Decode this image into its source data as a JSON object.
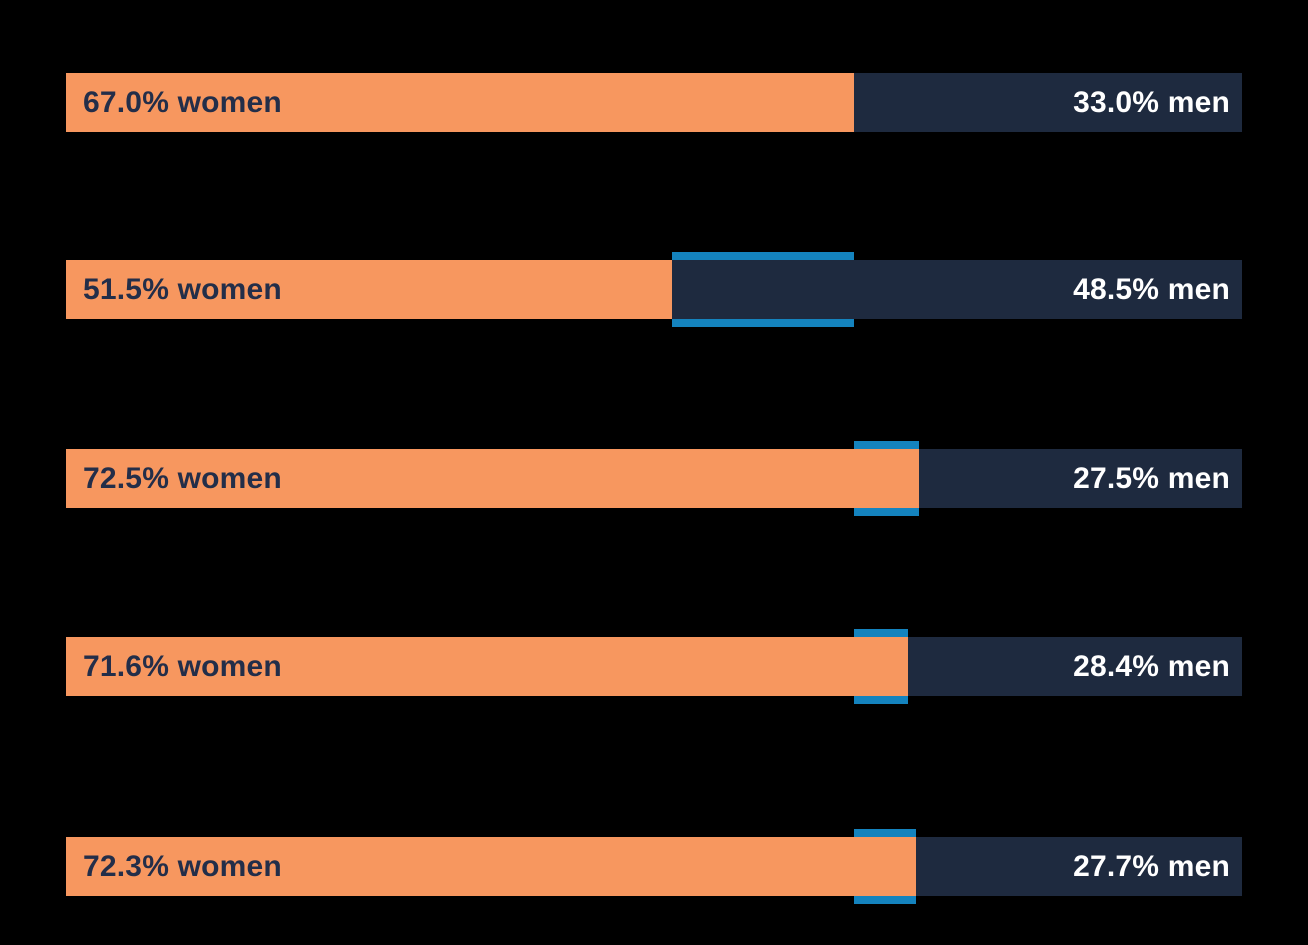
{
  "chart_data": {
    "type": "bar",
    "subtype": "horizontal-stacked-100pct",
    "title": "",
    "xlabel": "",
    "ylabel": "",
    "axis_visible": false,
    "grid": false,
    "legend": "none (labels written inside bar segments)",
    "background": "#000000",
    "series": [
      {
        "name": "women",
        "color": "#F7975F",
        "values": [
          67.0,
          51.5,
          72.5,
          71.6,
          72.3
        ]
      },
      {
        "name": "men",
        "color": "#1E2A3F",
        "values": [
          33.0,
          48.5,
          27.5,
          28.4,
          27.7
        ]
      }
    ],
    "reference_marker": {
      "color": "#1483BE",
      "reference_pct": 67.0,
      "description": "blue band behind each bar spanning from 67.0% to that bar's women share"
    },
    "rows": [
      {
        "women_pct": 67.0,
        "men_pct": 33.0,
        "women_label": "67.0% women",
        "men_label": "33.0% men",
        "highlight": null
      },
      {
        "women_pct": 51.5,
        "men_pct": 48.5,
        "women_label": "51.5% women",
        "men_label": "48.5% men",
        "highlight": {
          "from": 51.5,
          "to": 67.0
        }
      },
      {
        "women_pct": 72.5,
        "men_pct": 27.5,
        "women_label": "72.5% women",
        "men_label": "27.5% men",
        "highlight": {
          "from": 67.0,
          "to": 72.5
        }
      },
      {
        "women_pct": 71.6,
        "men_pct": 28.4,
        "women_label": "71.6% women",
        "men_label": "28.4% men",
        "highlight": {
          "from": 67.0,
          "to": 71.6
        }
      },
      {
        "women_pct": 72.3,
        "men_pct": 27.7,
        "women_label": "72.3% women",
        "men_label": "27.7% men",
        "highlight": {
          "from": 67.0,
          "to": 72.3
        }
      }
    ],
    "colors": {
      "women": "#F7975F",
      "men": "#1E2A3F",
      "highlight": "#1483BE",
      "women_label_text": "#232E49",
      "men_label_text": "#FFFFFF",
      "background": "#000000"
    }
  }
}
